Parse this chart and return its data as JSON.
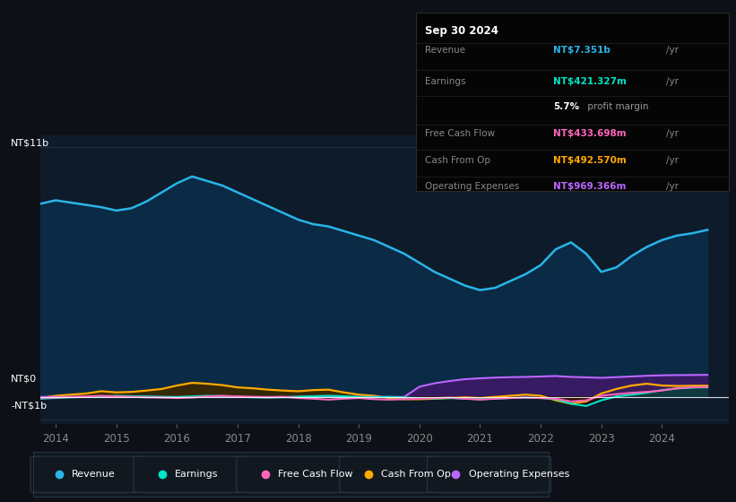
{
  "bg_color": "#0d1117",
  "plot_bg_color": "#0d1b2a",
  "title": "Sep 30 2024",
  "table_data": {
    "Revenue": {
      "value": "NT$7.351b",
      "unit": "/yr",
      "color": "#29b5e8"
    },
    "Earnings": {
      "value": "NT$421.327m",
      "unit": "/yr",
      "color": "#00e5c5"
    },
    "profit_margin": {
      "pct": "5.7%",
      "text": "profit margin"
    },
    "Free Cash Flow": {
      "value": "NT$433.698m",
      "unit": "/yr",
      "color": "#ff66bb"
    },
    "Cash From Op": {
      "value": "NT$492.570m",
      "unit": "/yr",
      "color": "#ffaa00"
    },
    "Operating Expenses": {
      "value": "NT$969.366m",
      "unit": "/yr",
      "color": "#bb66ff"
    }
  },
  "ylabel_top": "NT$11b",
  "ylabel_zero": "NT$0",
  "ylabel_neg": "-NT$1b",
  "legend": [
    {
      "label": "Revenue",
      "color": "#29b5e8"
    },
    {
      "label": "Earnings",
      "color": "#00e5c5"
    },
    {
      "label": "Free Cash Flow",
      "color": "#ff66bb"
    },
    {
      "label": "Cash From Op",
      "color": "#ffaa00"
    },
    {
      "label": "Operating Expenses",
      "color": "#bb66ff"
    }
  ],
  "revenue_x": [
    2013.75,
    2014.0,
    2014.25,
    2014.5,
    2014.75,
    2015.0,
    2015.25,
    2015.5,
    2015.75,
    2016.0,
    2016.25,
    2016.5,
    2016.75,
    2017.0,
    2017.25,
    2017.5,
    2017.75,
    2018.0,
    2018.25,
    2018.5,
    2018.75,
    2019.0,
    2019.25,
    2019.5,
    2019.75,
    2020.0,
    2020.25,
    2020.5,
    2020.75,
    2021.0,
    2021.25,
    2021.5,
    2021.75,
    2022.0,
    2022.25,
    2022.5,
    2022.75,
    2023.0,
    2023.25,
    2023.5,
    2023.75,
    2024.0,
    2024.25,
    2024.5,
    2024.75
  ],
  "revenue_y": [
    8.5,
    8.65,
    8.55,
    8.45,
    8.35,
    8.2,
    8.3,
    8.6,
    9.0,
    9.4,
    9.7,
    9.5,
    9.3,
    9.0,
    8.7,
    8.4,
    8.1,
    7.8,
    7.6,
    7.5,
    7.3,
    7.1,
    6.9,
    6.6,
    6.3,
    5.9,
    5.5,
    5.2,
    4.9,
    4.7,
    4.8,
    5.1,
    5.4,
    5.8,
    6.5,
    6.8,
    6.3,
    5.5,
    5.7,
    6.2,
    6.6,
    6.9,
    7.1,
    7.2,
    7.35
  ],
  "cashfromop_x": [
    2013.75,
    2014.0,
    2014.25,
    2014.5,
    2014.75,
    2015.0,
    2015.25,
    2015.5,
    2015.75,
    2016.0,
    2016.25,
    2016.5,
    2016.75,
    2017.0,
    2017.25,
    2017.5,
    2017.75,
    2018.0,
    2018.25,
    2018.5,
    2018.75,
    2019.0,
    2019.25,
    2019.5,
    2019.75,
    2020.0,
    2020.25,
    2020.5,
    2020.75,
    2021.0,
    2021.25,
    2021.5,
    2021.75,
    2022.0,
    2022.25,
    2022.5,
    2022.75,
    2023.0,
    2023.25,
    2023.5,
    2023.75,
    2024.0,
    2024.25,
    2024.5,
    2024.75
  ],
  "cashfromop_y": [
    -0.05,
    0.05,
    0.1,
    0.15,
    0.25,
    0.2,
    0.22,
    0.28,
    0.35,
    0.5,
    0.62,
    0.58,
    0.52,
    0.42,
    0.38,
    0.32,
    0.28,
    0.25,
    0.3,
    0.32,
    0.2,
    0.1,
    0.05,
    -0.05,
    -0.1,
    -0.1,
    -0.08,
    -0.05,
    -0.02,
    -0.05,
    0.0,
    0.05,
    0.1,
    0.05,
    -0.15,
    -0.3,
    -0.2,
    0.15,
    0.35,
    0.5,
    0.58,
    0.5,
    0.48,
    0.49,
    0.493
  ],
  "earnings_x": [
    2013.75,
    2014.0,
    2014.25,
    2014.5,
    2014.75,
    2015.0,
    2015.25,
    2015.5,
    2015.75,
    2016.0,
    2016.25,
    2016.5,
    2016.75,
    2017.0,
    2017.25,
    2017.5,
    2017.75,
    2018.0,
    2018.25,
    2018.5,
    2018.75,
    2019.0,
    2019.25,
    2019.5,
    2019.75,
    2020.0,
    2020.25,
    2020.5,
    2020.75,
    2021.0,
    2021.25,
    2021.5,
    2021.75,
    2022.0,
    2022.25,
    2022.5,
    2022.75,
    2023.0,
    2023.25,
    2023.5,
    2023.75,
    2024.0,
    2024.25,
    2024.5,
    2024.75
  ],
  "earnings_y": [
    -0.08,
    -0.05,
    -0.02,
    0.0,
    0.02,
    0.05,
    0.03,
    0.02,
    0.0,
    -0.01,
    0.02,
    0.05,
    0.03,
    0.01,
    -0.02,
    -0.03,
    -0.02,
    0.01,
    0.03,
    0.05,
    0.03,
    0.0,
    -0.02,
    0.0,
    -0.03,
    -0.05,
    -0.07,
    -0.05,
    -0.08,
    -0.1,
    -0.08,
    -0.05,
    -0.03,
    -0.05,
    -0.1,
    -0.3,
    -0.4,
    -0.15,
    0.02,
    0.1,
    0.18,
    0.3,
    0.37,
    0.41,
    0.421
  ],
  "fcf_x": [
    2013.75,
    2014.0,
    2014.25,
    2014.5,
    2014.75,
    2015.0,
    2015.25,
    2015.5,
    2015.75,
    2016.0,
    2016.25,
    2016.5,
    2016.75,
    2017.0,
    2017.25,
    2017.5,
    2017.75,
    2018.0,
    2018.25,
    2018.5,
    2018.75,
    2019.0,
    2019.25,
    2019.5,
    2019.75,
    2020.0,
    2020.25,
    2020.5,
    2020.75,
    2021.0,
    2021.25,
    2021.5,
    2021.75,
    2022.0,
    2022.25,
    2022.5,
    2022.75,
    2023.0,
    2023.25,
    2023.5,
    2023.75,
    2024.0,
    2024.25,
    2024.5,
    2024.75
  ],
  "fcf_y": [
    -0.05,
    -0.03,
    0.0,
    0.02,
    0.05,
    0.02,
    0.0,
    -0.02,
    -0.03,
    -0.05,
    -0.03,
    0.02,
    0.05,
    0.02,
    0.0,
    -0.02,
    0.0,
    -0.05,
    -0.08,
    -0.12,
    -0.08,
    -0.05,
    -0.1,
    -0.12,
    -0.1,
    -0.08,
    -0.05,
    -0.03,
    -0.08,
    -0.12,
    -0.08,
    -0.05,
    -0.03,
    -0.05,
    -0.08,
    -0.2,
    -0.15,
    0.05,
    0.12,
    0.18,
    0.22,
    0.28,
    0.38,
    0.42,
    0.434
  ],
  "opex_x": [
    2013.75,
    2014.0,
    2014.25,
    2014.5,
    2014.75,
    2015.0,
    2015.25,
    2015.5,
    2015.75,
    2016.0,
    2016.25,
    2016.5,
    2016.75,
    2017.0,
    2017.25,
    2017.5,
    2017.75,
    2018.0,
    2018.25,
    2018.5,
    2018.75,
    2019.0,
    2019.25,
    2019.5,
    2019.75,
    2020.0,
    2020.25,
    2020.5,
    2020.75,
    2021.0,
    2021.25,
    2021.5,
    2021.75,
    2022.0,
    2022.25,
    2022.5,
    2022.75,
    2023.0,
    2023.25,
    2023.5,
    2023.75,
    2024.0,
    2024.25,
    2024.5,
    2024.75
  ],
  "opex_y": [
    0.0,
    0.0,
    0.0,
    0.0,
    0.0,
    0.0,
    0.0,
    0.0,
    0.0,
    0.0,
    0.0,
    0.0,
    0.0,
    0.0,
    0.0,
    0.0,
    0.0,
    0.0,
    0.0,
    0.0,
    0.0,
    0.0,
    0.0,
    0.0,
    0.0,
    0.45,
    0.6,
    0.7,
    0.78,
    0.82,
    0.85,
    0.87,
    0.88,
    0.9,
    0.92,
    0.88,
    0.86,
    0.84,
    0.87,
    0.9,
    0.93,
    0.95,
    0.96,
    0.965,
    0.969
  ],
  "ylim": [
    -1.2,
    11.5
  ],
  "xlim": [
    2013.75,
    2025.1
  ],
  "xticks": [
    2014,
    2015,
    2016,
    2017,
    2018,
    2019,
    2020,
    2021,
    2022,
    2023,
    2024
  ],
  "y_top_val": 11.0,
  "y_zero_val": 0.0,
  "y_neg_val": -1.0
}
